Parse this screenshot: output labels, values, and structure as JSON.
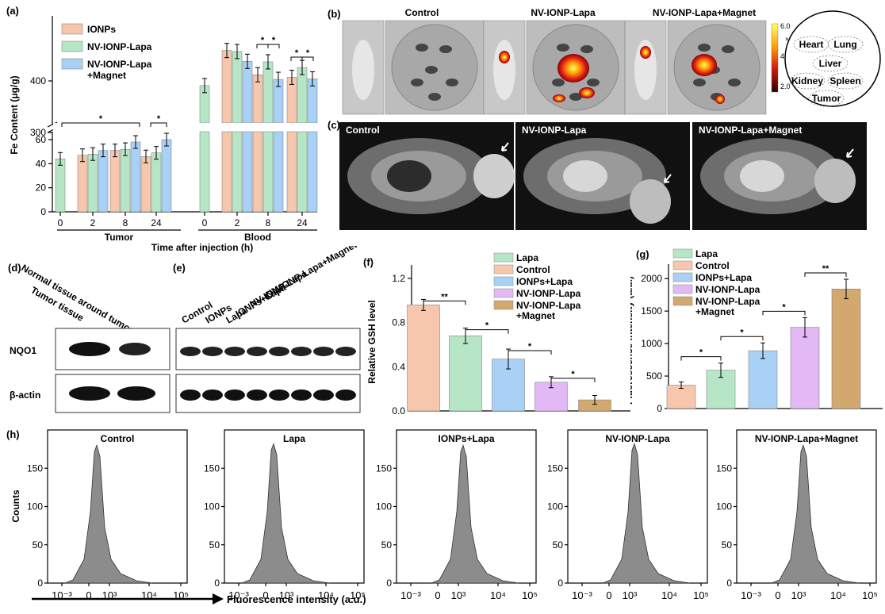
{
  "colors": {
    "peach": "#f6c7ad",
    "green": "#b7e6c6",
    "blue": "#a9d1f5",
    "purple": "#e2b9f4",
    "tan": "#d3a86e",
    "heat_low": "#8b0000",
    "heat_high": "#ffff66",
    "gray": "#8c8c8c"
  },
  "panel_labels": {
    "a": "(a)",
    "b": "(b)",
    "c": "(c)",
    "d": "(d)",
    "e": "(e)",
    "f": "(f)",
    "g": "(g)",
    "h": "(h)"
  },
  "chart_data": [
    {
      "type": "bar",
      "panel": "a",
      "ylabel": "Fe Content (μg/g)",
      "xlabel": "Time after injection (h)",
      "groups": [
        "Tumor",
        "Blood"
      ],
      "legend": [
        "IONPs",
        "NV-IONP-Lapa",
        "NV-IONP-Lapa\n+Magnet"
      ],
      "y_ticks_upper": [
        300,
        400
      ],
      "y_ticks_lower": [
        0,
        20,
        40,
        60
      ],
      "x_ticks": [
        "0",
        "2",
        "8",
        "24",
        "0",
        "2",
        "8",
        "24"
      ],
      "series": [
        {
          "name": "IONPs",
          "tumor": [
            null,
            47,
            51,
            46
          ],
          "blood": [
            null,
            459,
            412,
            407
          ]
        },
        {
          "name": "NV-IONP-Lapa",
          "tumor": [
            44,
            48,
            52,
            49
          ],
          "blood": [
            391,
            457,
            437,
            426
          ]
        },
        {
          "name": "NV-IONP-Lapa\n+Magnet",
          "tumor": [
            null,
            51,
            58,
            60
          ],
          "blood": [
            null,
            438,
            403,
            404
          ]
        }
      ],
      "significance": "*"
    },
    {
      "type": "bar",
      "panel": "f",
      "ylabel": "Relative GSH level",
      "categories": [
        "Control",
        "Lapa",
        "IONPs+Lapa",
        "NV-IONP-Lapa",
        "NV-IONP-Lapa\n+Magnet"
      ],
      "values": [
        0.96,
        0.68,
        0.47,
        0.26,
        0.1
      ],
      "errors": [
        0.05,
        0.07,
        0.09,
        0.05,
        0.04
      ],
      "y_ticks": [
        0.0,
        0.4,
        0.8,
        1.2
      ],
      "ylim": [
        0,
        1.25
      ],
      "brackets": [
        "**",
        "*",
        "*",
        "*"
      ]
    },
    {
      "type": "bar",
      "panel": "g",
      "ylabel": "Fluorescence intensity (a.u.)",
      "categories": [
        "Control",
        "Lapa",
        "IONPs+Lapa",
        "NV-IONP-Lapa",
        "NV-IONP-Lapa\n+Magnet"
      ],
      "values": [
        360,
        590,
        890,
        1250,
        1840
      ],
      "errors": [
        50,
        110,
        120,
        150,
        150
      ],
      "y_ticks": [
        0,
        500,
        1000,
        1500,
        2000
      ],
      "ylim": [
        0,
        2100
      ],
      "brackets": [
        "*",
        "*",
        "*",
        "**"
      ]
    },
    {
      "type": "histogram",
      "panel": "h",
      "ylabel": "Counts",
      "xlabel": "Fluorescence intensity (a.u.)",
      "y_ticks": [
        0,
        50,
        100,
        150
      ],
      "x_ticks": [
        "10⁻³",
        "0",
        "10³",
        "10⁴",
        "10⁵"
      ],
      "plots": [
        {
          "title": "Control",
          "peak_at": "~10²",
          "peak": 180
        },
        {
          "title": "Lapa",
          "peak_at": "~10²",
          "peak": 182
        },
        {
          "title": "IONPs+Lapa",
          "peak_at": "~10³",
          "peak": 180
        },
        {
          "title": "NV-IONP-Lapa",
          "peak_at": "~10³",
          "peak": 182
        },
        {
          "title": "NV-IONP-Lapa+Magnet",
          "peak_at": "~10³",
          "peak": 180
        }
      ]
    }
  ],
  "panel_b": {
    "titles": [
      "Control",
      "NV-IONP-Lapa",
      "NV-IONP-Lapa+Magnet"
    ],
    "scale_ticks": [
      "6.0",
      "4.0",
      "2.0"
    ],
    "scale_unit": "×10⁷",
    "organs": [
      "Heart",
      "Lung",
      "Liver",
      "Kidney",
      "Spleen",
      "Tumor"
    ]
  },
  "panel_c": {
    "titles": [
      "Control",
      "NV-IONP-Lapa",
      "NV-IONP-Lapa+Magnet"
    ]
  },
  "panel_d": {
    "columns": [
      "Normal tissue around tumor",
      "Tumor tissue"
    ],
    "rows": [
      "NQO1",
      "β-actin"
    ]
  },
  "panel_e": {
    "columns": [
      "Control",
      "IONPs",
      "Lapa",
      "IONPs+Lapa",
      "NV-IONP-Lapa",
      "NV-IONP-Lapa+Magnet"
    ]
  }
}
